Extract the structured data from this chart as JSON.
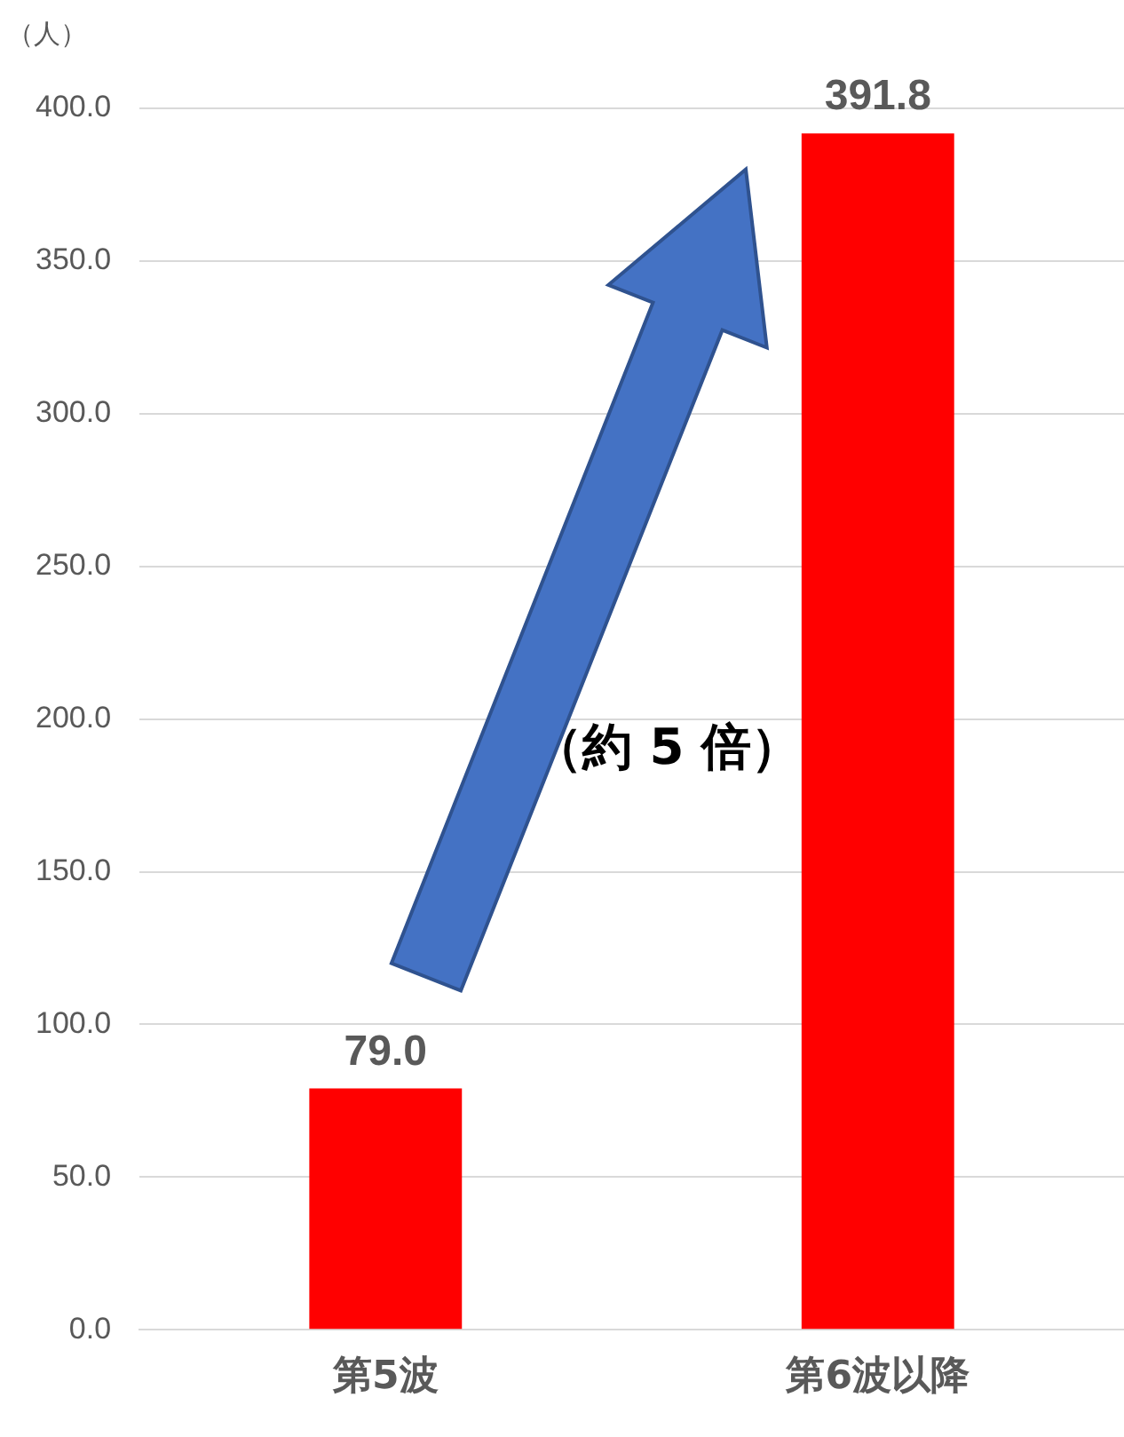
{
  "chart_data": {
    "type": "bar",
    "ylabel": "（人）",
    "categories": [
      "第5波",
      "第6波以降"
    ],
    "values": [
      79.0,
      391.8
    ],
    "color": "#ff0000",
    "value_labels": [
      "79.0",
      "391.8"
    ],
    "ylim": [
      0,
      400
    ],
    "yticks": [
      {
        "value": 0,
        "label": "0.0"
      },
      {
        "value": 50,
        "label": "50.0"
      },
      {
        "value": 100,
        "label": "100.0"
      },
      {
        "value": 150,
        "label": "150.0"
      },
      {
        "value": 200,
        "label": "200.0"
      },
      {
        "value": 250,
        "label": "250.0"
      },
      {
        "value": 300,
        "label": "300.0"
      },
      {
        "value": 350,
        "label": "350.0"
      },
      {
        "value": 400,
        "label": "400.0"
      }
    ],
    "grid": "y",
    "legend": false,
    "annotations": [
      "（約 5 倍）"
    ]
  }
}
